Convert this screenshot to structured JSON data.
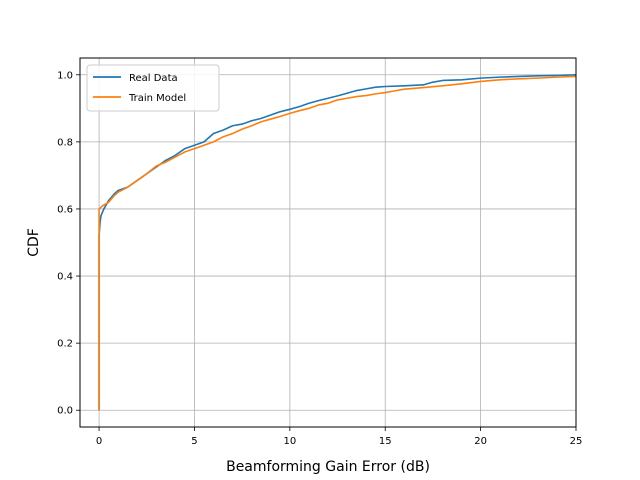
{
  "chart_data": {
    "type": "line",
    "title": "",
    "xlabel": "Beamforming Gain Error (dB)",
    "ylabel": "CDF",
    "xlim": [
      -1,
      25
    ],
    "ylim": [
      -0.05,
      1.05
    ],
    "xticks": [
      0,
      5,
      10,
      15,
      20,
      25
    ],
    "yticks": [
      0.0,
      0.2,
      0.4,
      0.6,
      0.8,
      1.0
    ],
    "xtick_labels": [
      "0",
      "5",
      "10",
      "15",
      "20",
      "25"
    ],
    "ytick_labels": [
      "0.0",
      "0.2",
      "0.4",
      "0.6",
      "0.8",
      "1.0"
    ],
    "grid": true,
    "legend_position": "top-left",
    "series": [
      {
        "name": "Real Data",
        "color": "#1f77b4",
        "points": [
          [
            0,
            0.0
          ],
          [
            0.0,
            0.52
          ],
          [
            0.05,
            0.56
          ],
          [
            0.1,
            0.58
          ],
          [
            0.25,
            0.6
          ],
          [
            0.5,
            0.625
          ],
          [
            0.8,
            0.645
          ],
          [
            1.0,
            0.655
          ],
          [
            1.5,
            0.665
          ],
          [
            2.0,
            0.685
          ],
          [
            2.5,
            0.705
          ],
          [
            3.0,
            0.725
          ],
          [
            3.5,
            0.745
          ],
          [
            4.0,
            0.76
          ],
          [
            4.5,
            0.78
          ],
          [
            5.0,
            0.79
          ],
          [
            5.5,
            0.8
          ],
          [
            6.0,
            0.825
          ],
          [
            6.5,
            0.835
          ],
          [
            7.0,
            0.848
          ],
          [
            7.5,
            0.853
          ],
          [
            8.0,
            0.863
          ],
          [
            8.5,
            0.87
          ],
          [
            9.0,
            0.88
          ],
          [
            9.5,
            0.89
          ],
          [
            10.0,
            0.897
          ],
          [
            10.5,
            0.905
          ],
          [
            11.0,
            0.915
          ],
          [
            11.5,
            0.923
          ],
          [
            12.0,
            0.93
          ],
          [
            12.5,
            0.937
          ],
          [
            13.0,
            0.945
          ],
          [
            13.5,
            0.953
          ],
          [
            14.0,
            0.958
          ],
          [
            14.5,
            0.963
          ],
          [
            15.0,
            0.965
          ],
          [
            16.0,
            0.967
          ],
          [
            17.0,
            0.97
          ],
          [
            17.5,
            0.978
          ],
          [
            18.0,
            0.983
          ],
          [
            19.0,
            0.985
          ],
          [
            20.0,
            0.99
          ],
          [
            21.0,
            0.993
          ],
          [
            22.0,
            0.995
          ],
          [
            23.0,
            0.997
          ],
          [
            24.0,
            0.998
          ],
          [
            25.0,
            1.0
          ]
        ]
      },
      {
        "name": "Train Model",
        "color": "#ff7f0e",
        "points": [
          [
            0,
            0.0
          ],
          [
            0.0,
            0.6
          ],
          [
            0.2,
            0.61
          ],
          [
            0.5,
            0.62
          ],
          [
            0.8,
            0.64
          ],
          [
            1.0,
            0.65
          ],
          [
            1.5,
            0.665
          ],
          [
            2.0,
            0.685
          ],
          [
            2.5,
            0.705
          ],
          [
            3.0,
            0.728
          ],
          [
            3.5,
            0.74
          ],
          [
            4.0,
            0.755
          ],
          [
            4.5,
            0.77
          ],
          [
            5.0,
            0.78
          ],
          [
            5.5,
            0.79
          ],
          [
            6.0,
            0.8
          ],
          [
            6.5,
            0.815
          ],
          [
            7.0,
            0.825
          ],
          [
            7.5,
            0.838
          ],
          [
            8.0,
            0.848
          ],
          [
            8.5,
            0.86
          ],
          [
            9.0,
            0.868
          ],
          [
            9.5,
            0.876
          ],
          [
            10.0,
            0.885
          ],
          [
            10.5,
            0.893
          ],
          [
            11.0,
            0.9
          ],
          [
            11.5,
            0.91
          ],
          [
            12.0,
            0.915
          ],
          [
            12.5,
            0.925
          ],
          [
            13.0,
            0.93
          ],
          [
            13.5,
            0.935
          ],
          [
            14.0,
            0.938
          ],
          [
            14.5,
            0.943
          ],
          [
            15.0,
            0.947
          ],
          [
            15.5,
            0.952
          ],
          [
            16.0,
            0.957
          ],
          [
            17.0,
            0.962
          ],
          [
            18.0,
            0.967
          ],
          [
            19.0,
            0.973
          ],
          [
            20.0,
            0.98
          ],
          [
            21.0,
            0.985
          ],
          [
            22.0,
            0.988
          ],
          [
            23.0,
            0.99
          ],
          [
            24.0,
            0.993
          ],
          [
            25.0,
            0.995
          ]
        ]
      }
    ]
  }
}
